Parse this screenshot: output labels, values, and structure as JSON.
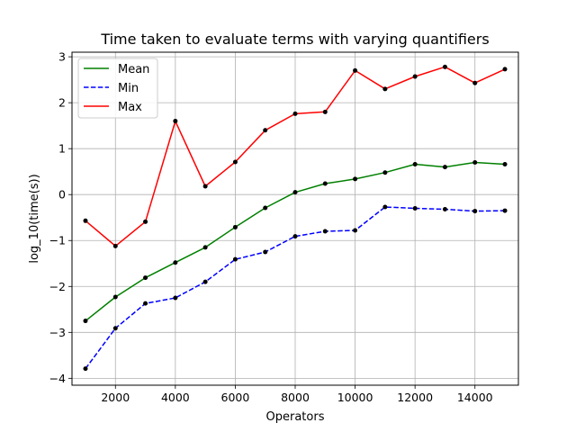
{
  "chart_data": {
    "type": "line",
    "title": "Time taken to evaluate terms with varying quantifiers",
    "xlabel": "Operators",
    "ylabel": "log_10(time(s))",
    "xlim": [
      550,
      15450
    ],
    "ylim": [
      -4.15,
      3.1
    ],
    "xticks": [
      2000,
      4000,
      6000,
      8000,
      10000,
      12000,
      14000
    ],
    "yticks": [
      -4,
      -3,
      -2,
      -1,
      0,
      1,
      2,
      3
    ],
    "grid": true,
    "legend_position": "top-left",
    "x": [
      1000,
      2000,
      3000,
      4000,
      5000,
      6000,
      7000,
      8000,
      9000,
      10000,
      11000,
      12000,
      13000,
      14000,
      15000
    ],
    "series": [
      {
        "name": "Mean",
        "color": "#008000",
        "dash": "solid",
        "values": [
          -2.75,
          -2.23,
          -1.81,
          -1.48,
          -1.15,
          -0.71,
          -0.29,
          0.05,
          0.24,
          0.34,
          0.48,
          0.66,
          0.6,
          0.7,
          0.66
        ]
      },
      {
        "name": "Min",
        "color": "#0000ff",
        "dash": "dashed",
        "values": [
          -3.79,
          -2.91,
          -2.37,
          -2.25,
          -1.9,
          -1.41,
          -1.25,
          -0.91,
          -0.8,
          -0.78,
          -0.27,
          -0.3,
          -0.32,
          -0.36,
          -0.35
        ]
      },
      {
        "name": "Max",
        "color": "#ff0000",
        "dash": "solid",
        "values": [
          -0.57,
          -1.12,
          -0.59,
          1.6,
          0.18,
          0.71,
          1.4,
          1.76,
          1.8,
          2.7,
          2.3,
          2.57,
          2.78,
          2.43,
          2.73
        ]
      }
    ],
    "marker_color": "#000000"
  }
}
